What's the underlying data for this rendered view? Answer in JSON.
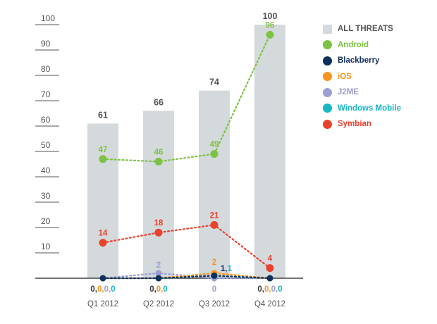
{
  "chart_data": {
    "type": "bar",
    "categories": [
      "Q1 2012",
      "Q2 2012",
      "Q3 2012",
      "Q4 2012"
    ],
    "y_ticks": [
      10,
      20,
      30,
      40,
      50,
      60,
      70,
      80,
      90,
      100
    ],
    "ylim": [
      0,
      100
    ],
    "grid": false,
    "legend_placement": "right",
    "bar_series": {
      "name": "ALL THREATS",
      "color": "#d4d9dc",
      "values": [
        61,
        66,
        74,
        100
      ]
    },
    "line_series": [
      {
        "name": "Android",
        "color": "#7dc242",
        "values": [
          47,
          46,
          49,
          96
        ]
      },
      {
        "name": "Blackberry",
        "color": "#0f2f5f",
        "values": [
          0,
          0,
          1,
          0
        ]
      },
      {
        "name": "iOS",
        "color": "#f7941d",
        "values": [
          0,
          0,
          2,
          0
        ]
      },
      {
        "name": "J2ME",
        "color": "#9b9fd3",
        "values": [
          0,
          2,
          0,
          0
        ]
      },
      {
        "name": "Windows Mobile",
        "color": "#17b7c4",
        "values": [
          0,
          0,
          1,
          0
        ]
      },
      {
        "name": "Symbian",
        "color": "#e8412c",
        "values": [
          14,
          18,
          21,
          4
        ]
      }
    ],
    "zero_value_labels": [
      {
        "parts": [
          {
            "text": "0,",
            "color": "#333333"
          },
          {
            "text": "0,",
            "color": "#f7941d"
          },
          {
            "text": "0,",
            "color": "#9b9fd3"
          },
          {
            "text": "0",
            "color": "#17b7c4"
          }
        ]
      },
      {
        "parts": [
          {
            "text": "0,",
            "color": "#333333"
          },
          {
            "text": "0,",
            "color": "#f7941d"
          },
          {
            "text": "0",
            "color": "#17b7c4"
          }
        ]
      },
      {
        "parts": [
          {
            "text": "0",
            "color": "#9b9fd3"
          }
        ]
      },
      {
        "parts": [
          {
            "text": "0,",
            "color": "#333333"
          },
          {
            "text": "0,",
            "color": "#f7941d"
          },
          {
            "text": "0,",
            "color": "#9b9fd3"
          },
          {
            "text": "0",
            "color": "#17b7c4"
          }
        ]
      }
    ],
    "small_value_labels": [
      {
        "category": "Q2 2012",
        "parts": [
          {
            "text": "2",
            "color": "#9b9fd3"
          }
        ]
      },
      {
        "category": "Q3 2012",
        "parts": [
          {
            "text": "2",
            "color": "#f7941d"
          }
        ]
      },
      {
        "category": "Q3 2012",
        "parts": [
          {
            "text": "1",
            "color": "#0f2f5f"
          },
          {
            "text": ",",
            "color": "#555555"
          },
          {
            "text": "1",
            "color": "#17b7c4"
          }
        ]
      }
    ]
  }
}
